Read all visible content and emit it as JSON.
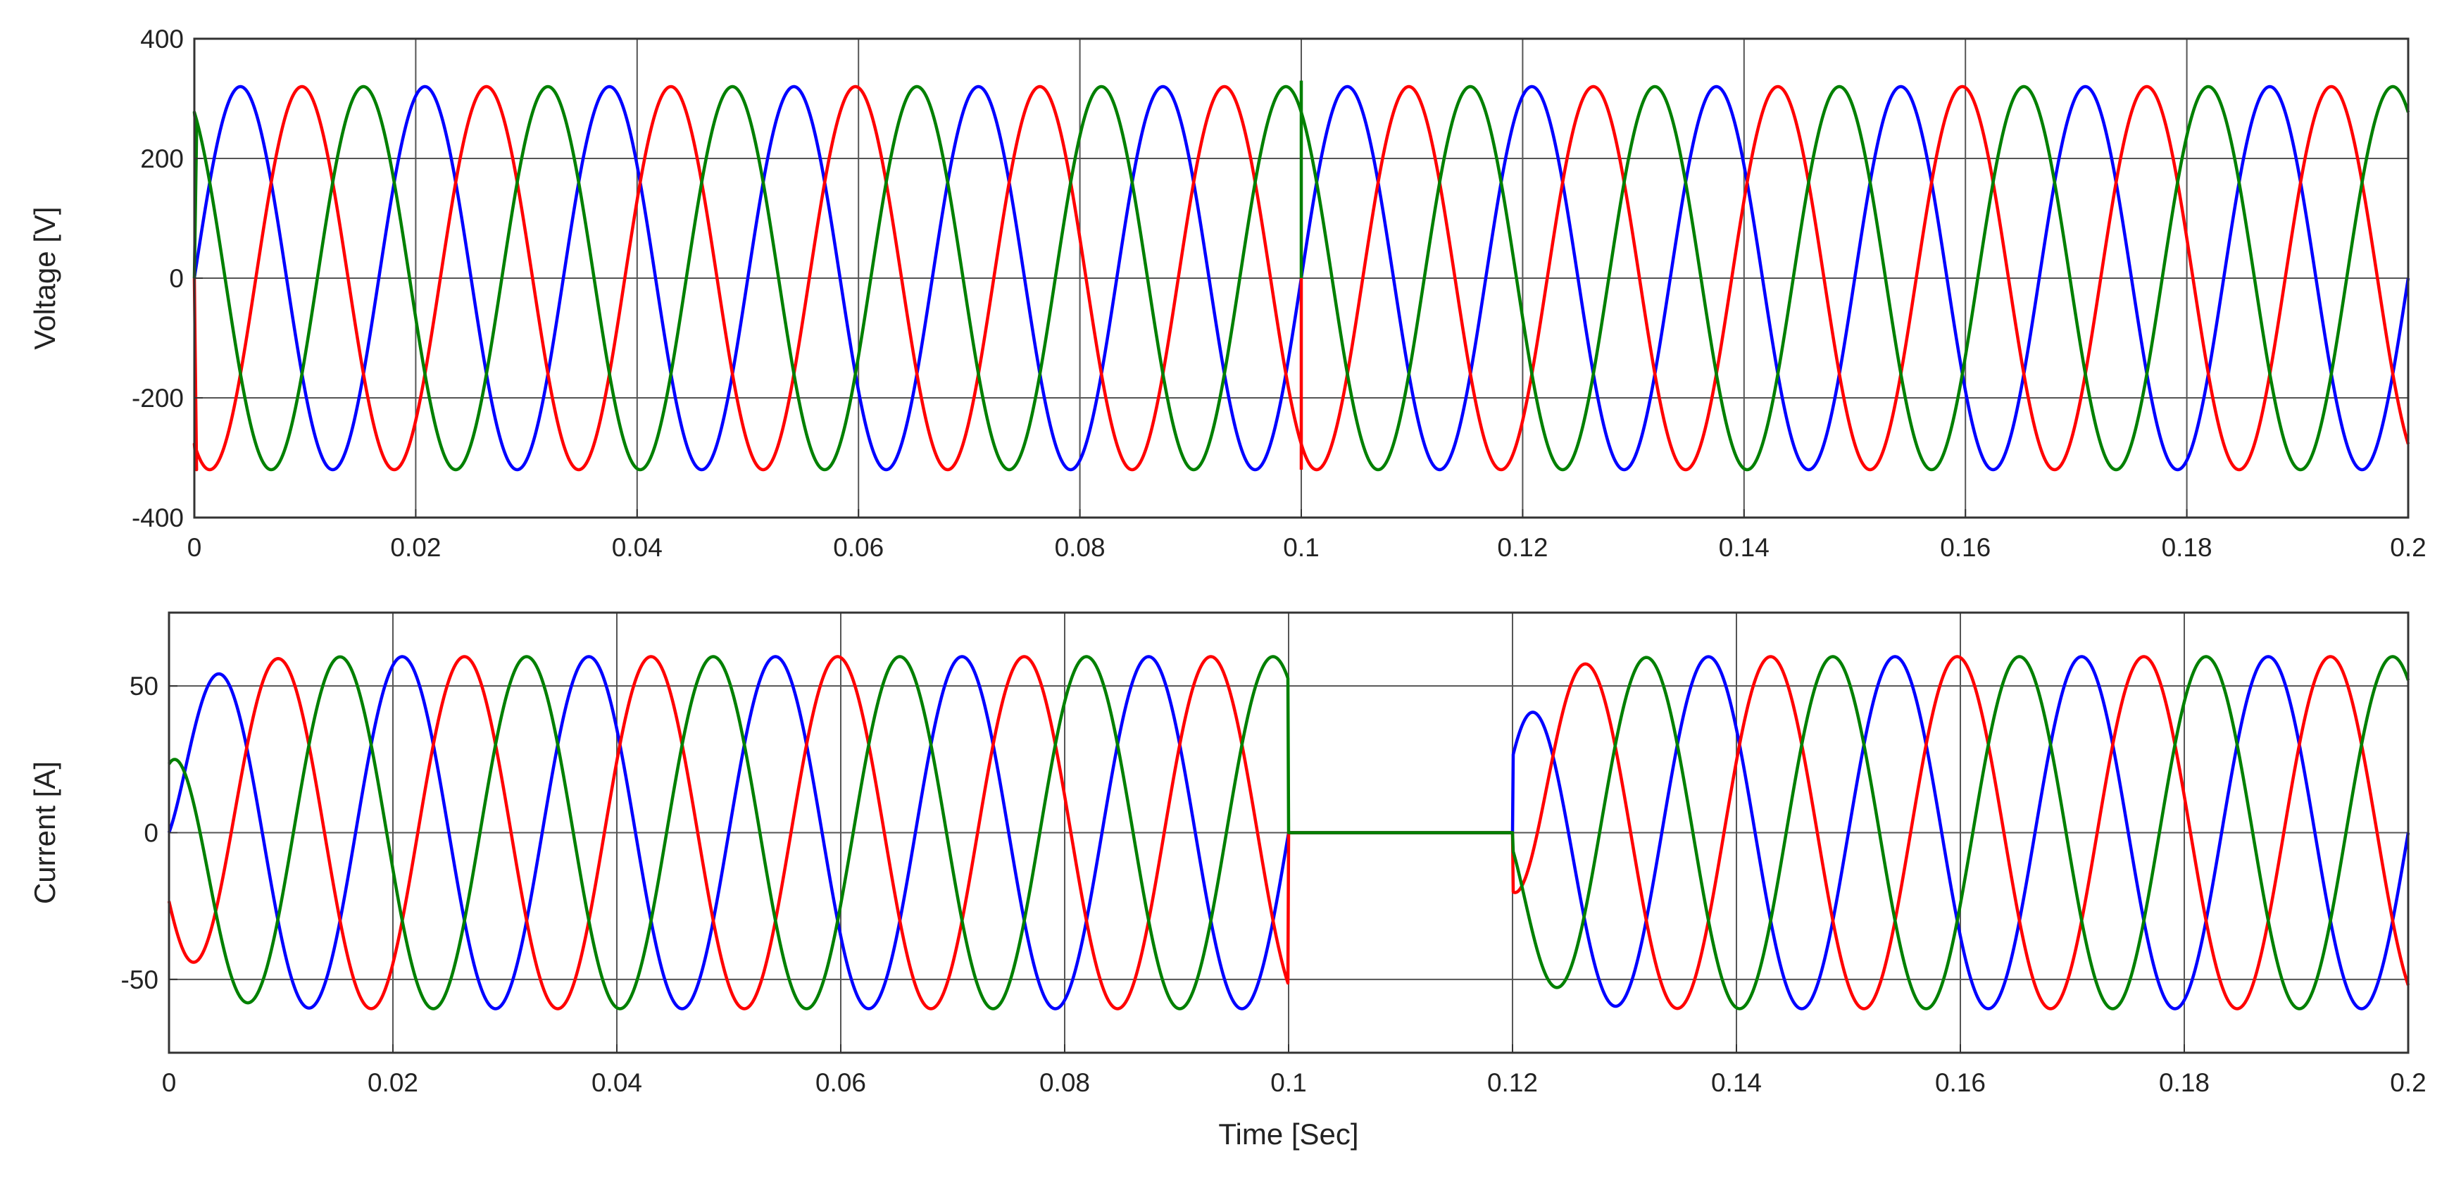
{
  "chart_data": [
    {
      "type": "line",
      "title": "",
      "xlabel": "",
      "ylabel": "Voltage [V]",
      "xlim": [
        0,
        0.2
      ],
      "ylim": [
        -400,
        400
      ],
      "xticks": [
        0,
        0.02,
        0.04,
        0.06,
        0.08,
        0.1,
        0.12,
        0.14,
        0.16,
        0.18,
        0.2
      ],
      "xtick_labels": [
        "0",
        "0.02",
        "0.04",
        "0.06",
        "0.08",
        "0.1",
        "0.12",
        "0.14",
        "0.16",
        "0.18",
        "0.2"
      ],
      "yticks": [
        -400,
        -200,
        0,
        200,
        400
      ],
      "ytick_labels": [
        "-400",
        "-200",
        "0",
        "200",
        "400"
      ],
      "grid": true,
      "legend": "none",
      "frequency_hz": 60,
      "series": [
        {
          "color": "#0000ff",
          "amplitude": 320,
          "phase_deg": 0,
          "startup_spike": null,
          "transient_at_0_1": null
        },
        {
          "color": "#ff0000",
          "amplitude": 320,
          "phase_deg": -120,
          "startup_spike": -320,
          "transient_at_0_1": -320
        },
        {
          "color": "#008000",
          "amplitude": 320,
          "phase_deg": 120,
          "startup_spike": 240,
          "transient_at_0_1": 330
        }
      ]
    },
    {
      "type": "line",
      "title": "",
      "xlabel": "Time [Sec]",
      "ylabel": "Current [A]",
      "xlim": [
        0,
        0.2
      ],
      "ylim": [
        -75,
        75
      ],
      "xticks": [
        0,
        0.02,
        0.04,
        0.06,
        0.08,
        0.1,
        0.12,
        0.14,
        0.16,
        0.18,
        0.2
      ],
      "xtick_labels": [
        "0",
        "0.02",
        "0.04",
        "0.06",
        "0.08",
        "0.1",
        "0.12",
        "0.14",
        "0.16",
        "0.18",
        "0.2"
      ],
      "yticks": [
        -50,
        0,
        50
      ],
      "ytick_labels": [
        "-50",
        "0",
        "50"
      ],
      "grid": true,
      "legend": "none",
      "frequency_hz": 60,
      "zero_interval": [
        0.1,
        0.12
      ],
      "series": [
        {
          "color": "#0000ff",
          "amplitude": 60,
          "phase_deg": 0
        },
        {
          "color": "#ff0000",
          "amplitude": 60,
          "phase_deg": -120
        },
        {
          "color": "#008000",
          "amplitude": 60,
          "phase_deg": 120
        }
      ]
    }
  ]
}
